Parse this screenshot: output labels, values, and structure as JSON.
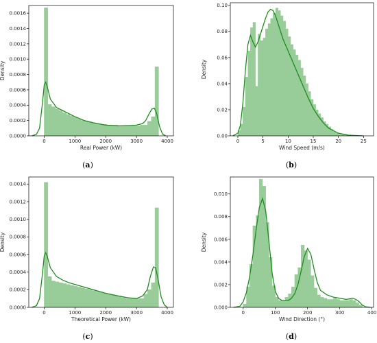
{
  "colors": {
    "bar": "#98cc98",
    "bar_edge": "#98cc98",
    "kde": "#1e8c1e",
    "axis": "#000000"
  },
  "chart_data": [
    {
      "type": "histogram+kde",
      "letter_text": "a",
      "xlabel": "Real Power (kW)",
      "ylabel": "Density",
      "xlim": [
        -500,
        4200
      ],
      "ylim": [
        0,
        0.0017
      ],
      "xticks": [
        0,
        1000,
        2000,
        3000,
        4000
      ],
      "xtick_labels": [
        "0",
        "1000",
        "2000",
        "3000",
        "4000"
      ],
      "yticks": [
        0,
        0.0002,
        0.0004,
        0.0006,
        0.0008,
        0.001,
        0.0012,
        0.0014,
        0.0016
      ],
      "ytick_labels": [
        "0.0000",
        "0.0002",
        "0.0004",
        "0.0006",
        "0.0008",
        "0.0010",
        "0.0012",
        "0.0014",
        "0.0016"
      ],
      "bins": {
        "start": 0,
        "width": 120,
        "values": [
          0.00167,
          0.00041,
          0.00038,
          0.00035,
          0.00033,
          0.0003,
          0.00028,
          0.00026,
          0.00024,
          0.00022,
          0.0002,
          0.00019,
          0.00018,
          0.00017,
          0.00016,
          0.00015,
          0.00015,
          0.00014,
          0.00014,
          0.00014,
          0.00013,
          0.00013,
          0.00013,
          0.00013,
          0.00013,
          0.00013,
          0.00014,
          0.00014,
          0.00019,
          0.00025,
          0.0009
        ]
      },
      "kde": {
        "x": [
          -400,
          -250,
          -150,
          -50,
          0,
          50,
          100,
          200,
          400,
          600,
          800,
          1000,
          1300,
          1600,
          2000,
          2400,
          2800,
          3000,
          3200,
          3300,
          3400,
          3500,
          3580,
          3650,
          3750,
          3850,
          3950
        ],
        "y": [
          0,
          2e-05,
          0.0001,
          0.00045,
          0.00066,
          0.0007,
          0.00064,
          0.00048,
          0.00037,
          0.00033,
          0.00029,
          0.00025,
          0.0002,
          0.00017,
          0.00014,
          0.00013,
          0.000135,
          0.00014,
          0.00016,
          0.0002,
          0.00028,
          0.00035,
          0.00036,
          0.0003,
          0.00012,
          2e-05,
          0
        ]
      }
    },
    {
      "type": "histogram+kde",
      "letter_text": "b",
      "xlabel": "Wind Speed (m/s)",
      "ylabel": "Density",
      "xlim": [
        -1.5,
        27
      ],
      "ylim": [
        0,
        0.102
      ],
      "xticks": [
        0,
        5,
        10,
        15,
        20,
        25
      ],
      "xtick_labels": [
        "0",
        "5",
        "10",
        "15",
        "20",
        "25"
      ],
      "yticks": [
        0,
        0.02,
        0.04,
        0.06,
        0.08,
        0.1
      ],
      "ytick_labels": [
        "0.00",
        "0.02",
        "0.04",
        "0.06",
        "0.08",
        "0.10"
      ],
      "bins": {
        "start": 0,
        "width": 0.5,
        "values": [
          0.004,
          0.009,
          0.022,
          0.045,
          0.065,
          0.083,
          0.087,
          0.038,
          0.078,
          0.073,
          0.075,
          0.082,
          0.086,
          0.09,
          0.094,
          0.098,
          0.096,
          0.092,
          0.088,
          0.082,
          0.076,
          0.07,
          0.066,
          0.062,
          0.058,
          0.052,
          0.046,
          0.04,
          0.034,
          0.028,
          0.024,
          0.02,
          0.017,
          0.014,
          0.011,
          0.009,
          0.007,
          0.005,
          0.003,
          0.002,
          0.001,
          0.0008,
          0.0006,
          0.0004,
          0.0003,
          0.0002
        ]
      },
      "kde": {
        "x": [
          -1,
          0,
          0.5,
          1,
          1.5,
          2,
          2.5,
          3,
          3.5,
          4,
          4.5,
          5,
          5.5,
          6,
          6.5,
          7,
          7.5,
          8,
          8.5,
          9,
          10,
          11,
          12,
          13,
          14,
          15,
          16,
          17,
          18,
          19,
          20,
          22,
          25
        ],
        "y": [
          0,
          0.002,
          0.008,
          0.025,
          0.05,
          0.07,
          0.077,
          0.072,
          0.068,
          0.072,
          0.078,
          0.084,
          0.09,
          0.095,
          0.097,
          0.096,
          0.092,
          0.086,
          0.08,
          0.074,
          0.065,
          0.056,
          0.047,
          0.038,
          0.029,
          0.021,
          0.015,
          0.01,
          0.006,
          0.004,
          0.002,
          0.0005,
          0
        ]
      }
    },
    {
      "type": "histogram+kde",
      "letter_text": "c",
      "xlabel": "Theoretical Power (kW)",
      "ylabel": "Density",
      "xlim": [
        -500,
        4200
      ],
      "ylim": [
        0,
        0.00148
      ],
      "xticks": [
        0,
        1000,
        2000,
        3000,
        4000
      ],
      "xtick_labels": [
        "0",
        "1000",
        "2000",
        "3000",
        "4000"
      ],
      "yticks": [
        0,
        0.0002,
        0.0004,
        0.0006,
        0.0008,
        0.001,
        0.0012,
        0.0014
      ],
      "ytick_labels": [
        "0.0000",
        "0.0002",
        "0.0004",
        "0.0006",
        "0.0008",
        "0.0010",
        "0.0012",
        "0.0014"
      ],
      "bins": {
        "start": 0,
        "width": 120,
        "values": [
          0.00142,
          0.00035,
          0.0003,
          0.00029,
          0.00028,
          0.00027,
          0.00026,
          0.00025,
          0.00024,
          0.00023,
          0.00022,
          0.00021,
          0.0002,
          0.00019,
          0.00018,
          0.00017,
          0.00016,
          0.00015,
          0.00014,
          0.00013,
          0.00012,
          0.00011,
          0.0001,
          0.0001,
          0.0001,
          0.0001,
          0.0001,
          0.00015,
          0.0002,
          0.00028,
          0.00113
        ]
      },
      "kde": {
        "x": [
          -400,
          -250,
          -150,
          -50,
          0,
          50,
          100,
          200,
          400,
          600,
          800,
          1000,
          1300,
          1600,
          2000,
          2400,
          2700,
          3000,
          3200,
          3350,
          3450,
          3550,
          3620,
          3700,
          3800,
          3900,
          4000
        ],
        "y": [
          0,
          2e-05,
          0.0001,
          0.0004,
          0.00058,
          0.00062,
          0.00058,
          0.00045,
          0.00035,
          0.00031,
          0.00028,
          0.00026,
          0.00023,
          0.0002,
          0.00016,
          0.00013,
          0.00011,
          0.0001,
          0.00013,
          0.0002,
          0.00035,
          0.00046,
          0.00045,
          0.00032,
          0.00012,
          3e-05,
          0
        ]
      }
    },
    {
      "type": "histogram+kde",
      "letter_text": "d",
      "xlabel": "Wind Direction (°)",
      "ylabel": "Density",
      "xlim": [
        -40,
        405
      ],
      "ylim": [
        0,
        0.0115
      ],
      "xticks": [
        0,
        100,
        200,
        300,
        400
      ],
      "xtick_labels": [
        "0",
        "100",
        "200",
        "300",
        "400"
      ],
      "yticks": [
        0,
        0.002,
        0.004,
        0.006,
        0.008,
        0.01
      ],
      "ytick_labels": [
        "0.000",
        "0.002",
        "0.004",
        "0.006",
        "0.008",
        "0.010"
      ],
      "bins": {
        "start": 0,
        "width": 10,
        "values": [
          0.0003,
          0.0018,
          0.0038,
          0.0072,
          0.0081,
          0.0113,
          0.0107,
          0.0075,
          0.0044,
          0.0019,
          0.0009,
          0.0006,
          0.0006,
          0.0009,
          0.0012,
          0.0018,
          0.0029,
          0.0035,
          0.0055,
          0.005,
          0.0042,
          0.0028,
          0.0017,
          0.0011,
          0.0009,
          0.0008,
          0.0007,
          0.0007,
          0.0008,
          0.0007,
          0.0006,
          0.0006,
          0.0006,
          0.0007,
          0.0006,
          0.0004,
          0.0002
        ]
      },
      "kde": {
        "x": [
          -30,
          -10,
          0,
          10,
          20,
          30,
          40,
          50,
          60,
          70,
          80,
          90,
          100,
          110,
          120,
          130,
          140,
          150,
          160,
          170,
          180,
          190,
          200,
          210,
          220,
          230,
          240,
          260,
          280,
          300,
          320,
          340,
          350,
          360,
          370,
          380,
          395
        ],
        "y": [
          0,
          0.0001,
          0.0005,
          0.0013,
          0.0027,
          0.0046,
          0.0068,
          0.0088,
          0.0096,
          0.0085,
          0.0058,
          0.003,
          0.0014,
          0.0008,
          0.0006,
          0.0006,
          0.0006,
          0.0008,
          0.0012,
          0.002,
          0.0032,
          0.0045,
          0.0052,
          0.0047,
          0.0034,
          0.0022,
          0.0015,
          0.0011,
          0.0009,
          0.0008,
          0.0007,
          0.0008,
          0.0007,
          0.0005,
          0.0002,
          5e-05,
          0
        ]
      }
    }
  ]
}
